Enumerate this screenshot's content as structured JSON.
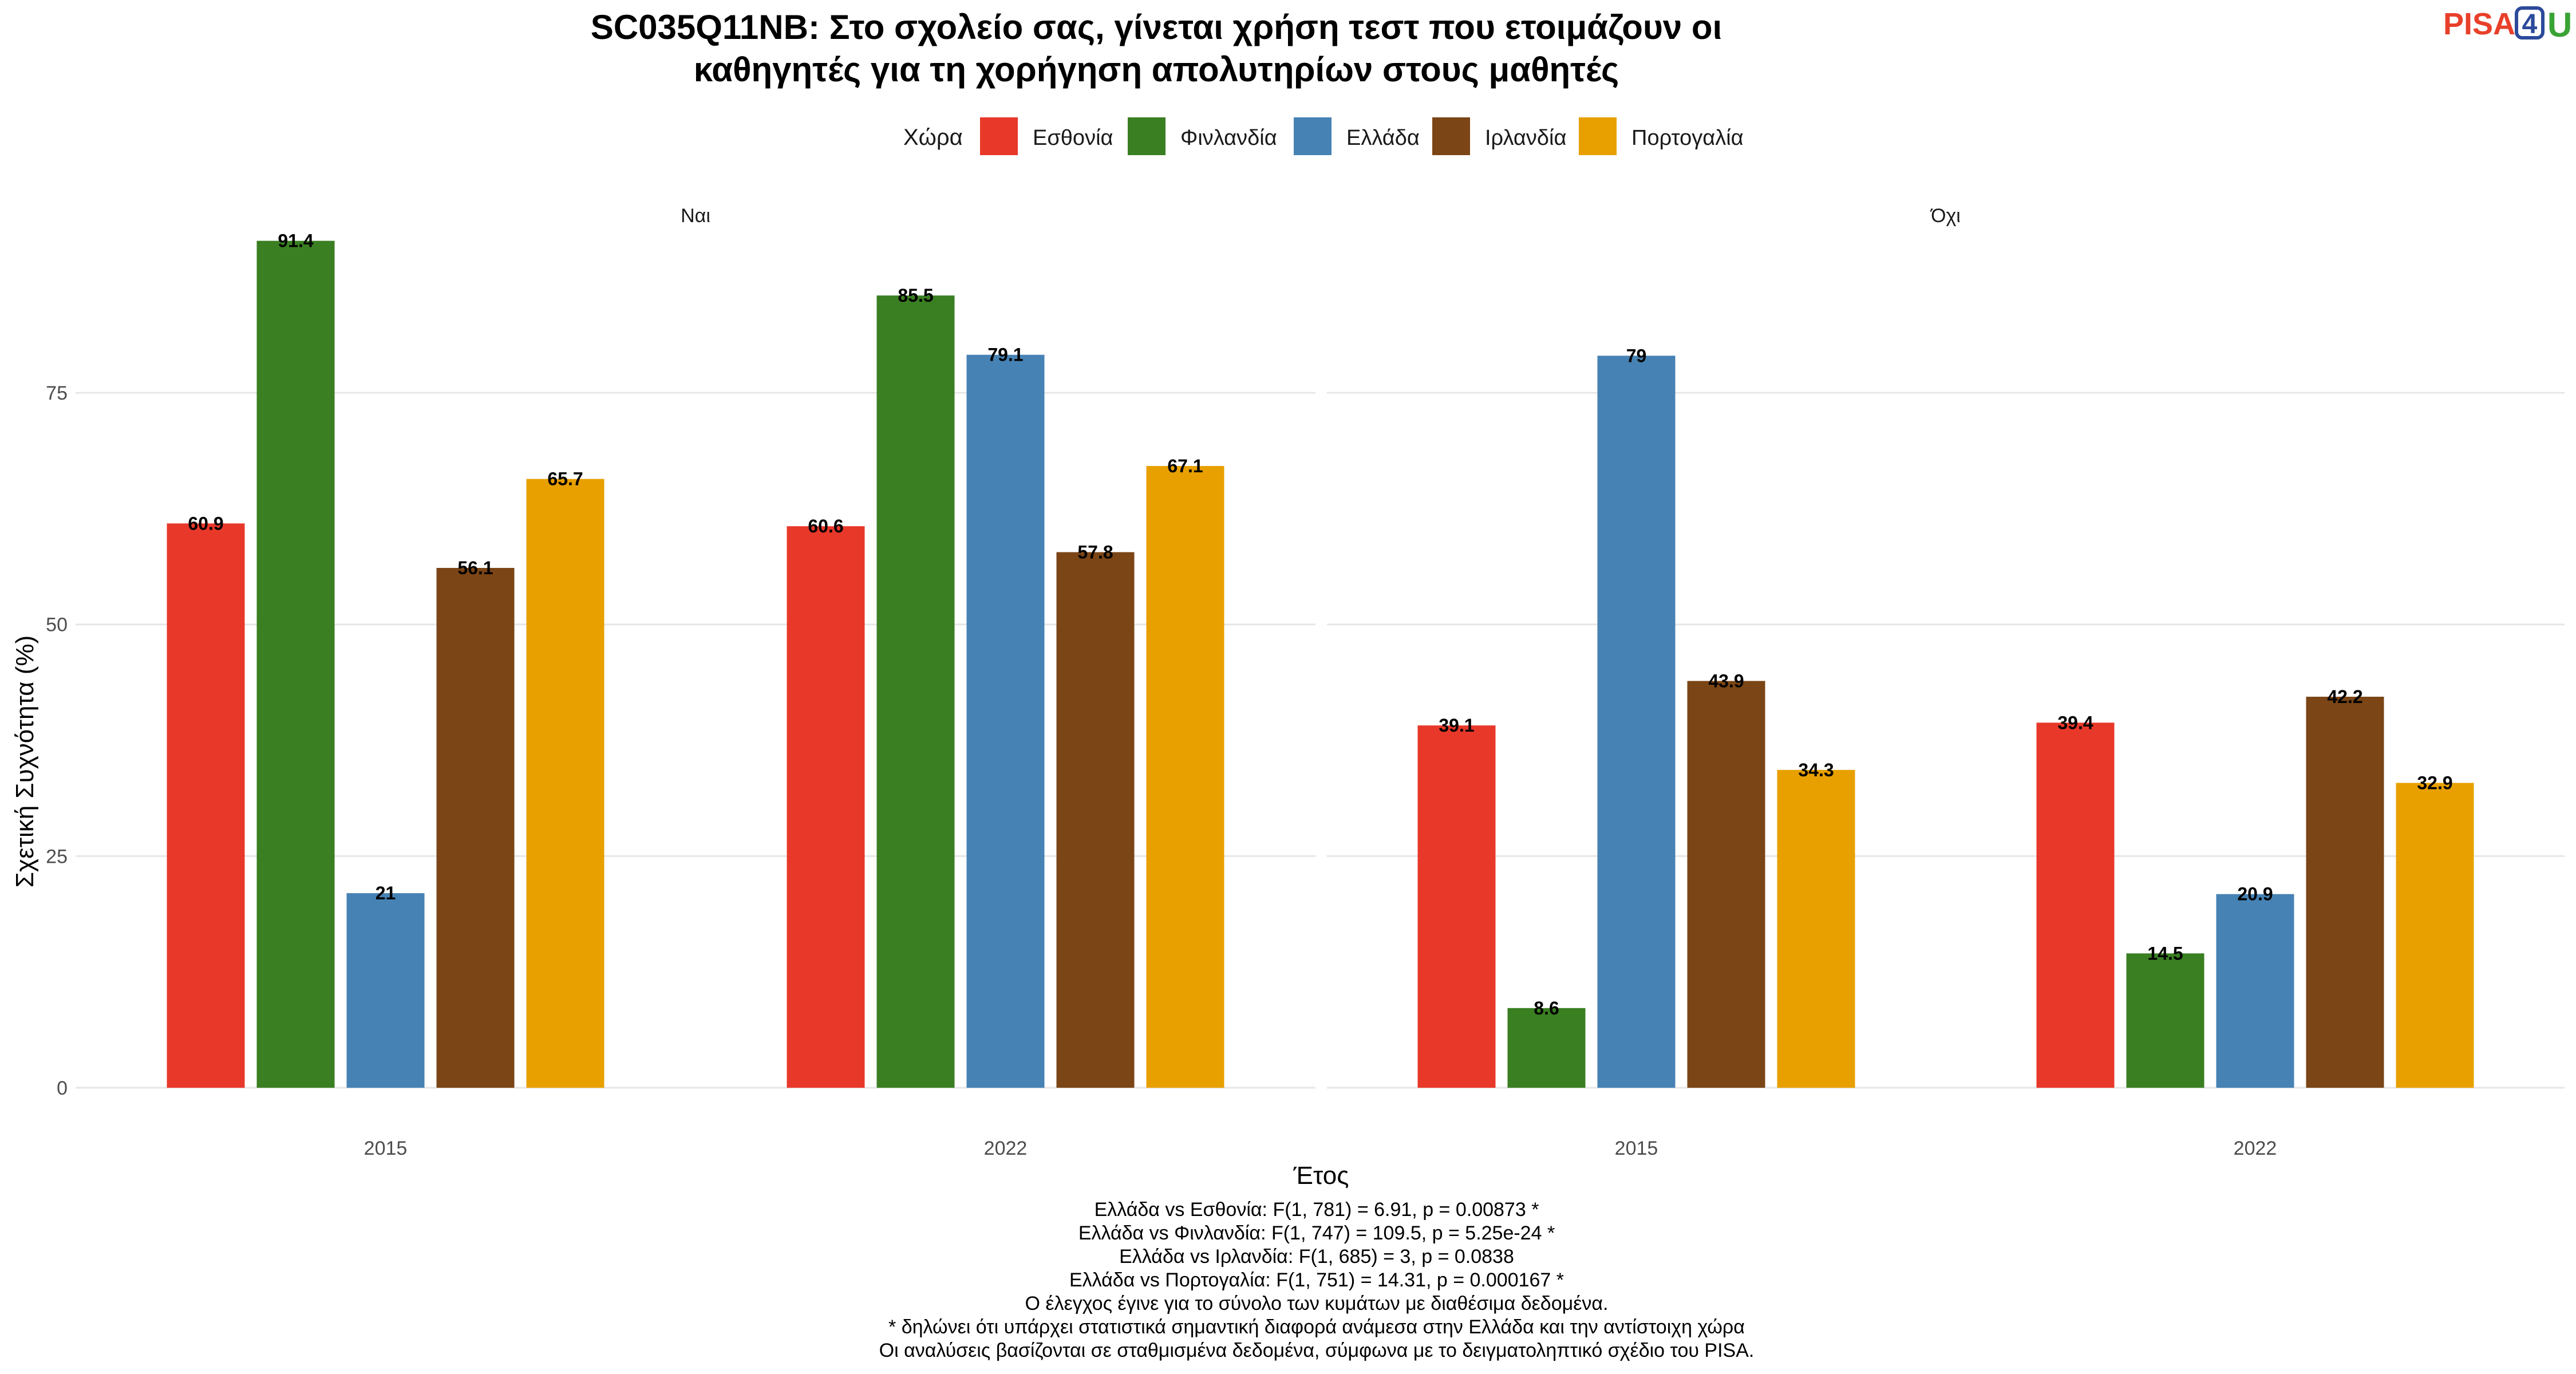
{
  "chart_data": {
    "type": "bar",
    "title_lines": [
      "SC035Q11NB: Στο σχολείο σας, γίνεται χρήση τεστ που ετοιμάζουν οι",
      "καθηγητές για τη χορήγηση απολυτηρίων στους μαθητές"
    ],
    "xlabel": "Έτος",
    "ylabel": "Σχετική Συχνότητα (%)",
    "ylim": [
      0,
      97
    ],
    "yticks": [
      0,
      25,
      50,
      75
    ],
    "grid": true,
    "legend": {
      "title": "Χώρα",
      "position": "top",
      "entries": [
        {
          "name": "Εσθονία",
          "color": "#e8382a"
        },
        {
          "name": "Φινλανδία",
          "color": "#3a7f22"
        },
        {
          "name": "Ελλάδα",
          "color": "#4682b4"
        },
        {
          "name": "Ιρλανδία",
          "color": "#7b4516"
        },
        {
          "name": "Πορτογαλία",
          "color": "#e8a000"
        }
      ]
    },
    "facets": [
      {
        "label": "Ναι",
        "categories": [
          "2015",
          "2022"
        ],
        "series": [
          {
            "name": "Εσθονία",
            "values": [
              60.9,
              60.6
            ],
            "labels": [
              "60.9",
              "60.6"
            ]
          },
          {
            "name": "Φινλανδία",
            "values": [
              91.4,
              85.5
            ],
            "labels": [
              "91.4",
              "85.5"
            ]
          },
          {
            "name": "Ελλάδα",
            "values": [
              21,
              79.1
            ],
            "labels": [
              "21",
              "79.1"
            ]
          },
          {
            "name": "Ιρλανδία",
            "values": [
              56.1,
              57.8
            ],
            "labels": [
              "56.1",
              "57.8"
            ]
          },
          {
            "name": "Πορτογαλία",
            "values": [
              65.7,
              67.1
            ],
            "labels": [
              "65.7",
              "67.1"
            ]
          }
        ]
      },
      {
        "label": "Όχι",
        "categories": [
          "2015",
          "2022"
        ],
        "series": [
          {
            "name": "Εσθονία",
            "values": [
              39.1,
              39.4
            ],
            "labels": [
              "39.1",
              "39.4"
            ]
          },
          {
            "name": "Φινλανδία",
            "values": [
              8.6,
              14.5
            ],
            "labels": [
              "8.6",
              "14.5"
            ]
          },
          {
            "name": "Ελλάδα",
            "values": [
              79,
              20.9
            ],
            "labels": [
              "79",
              "20.9"
            ]
          },
          {
            "name": "Ιρλανδία",
            "values": [
              43.9,
              42.2
            ],
            "labels": [
              "43.9",
              "42.2"
            ]
          },
          {
            "name": "Πορτογαλία",
            "values": [
              34.3,
              32.9
            ],
            "labels": [
              "34.3",
              "32.9"
            ]
          }
        ]
      }
    ],
    "caption_lines": [
      "Ελλάδα vs Εσθονία: F(1, 781) = 6.91, p = 0.00873 *",
      "Ελλάδα vs Φινλανδία: F(1, 747) = 109.5, p = 5.25e-24 *",
      "Ελλάδα vs Ιρλανδία: F(1, 685) = 3, p = 0.0838",
      "Ελλάδα vs Πορτογαλία: F(1, 751) = 14.31, p = 0.000167 *",
      "Ο έλεγχος έγινε για το σύνολο των κυμάτων με διαθέσιμα δεδομένα.",
      "* δηλώνει ότι υπάρχει στατιστικά σημαντική διαφορά ανάμεσα στην Ελλάδα και την αντίστοιχη χώρα",
      "Οι αναλύσεις βασίζονται σε σταθμισμένα δεδομένα, σύμφωνα με το δειγματοληπτικό σχέδιο του PISA."
    ]
  },
  "logo": {
    "pisa": "PISA",
    "four": "4",
    "u": "U"
  }
}
